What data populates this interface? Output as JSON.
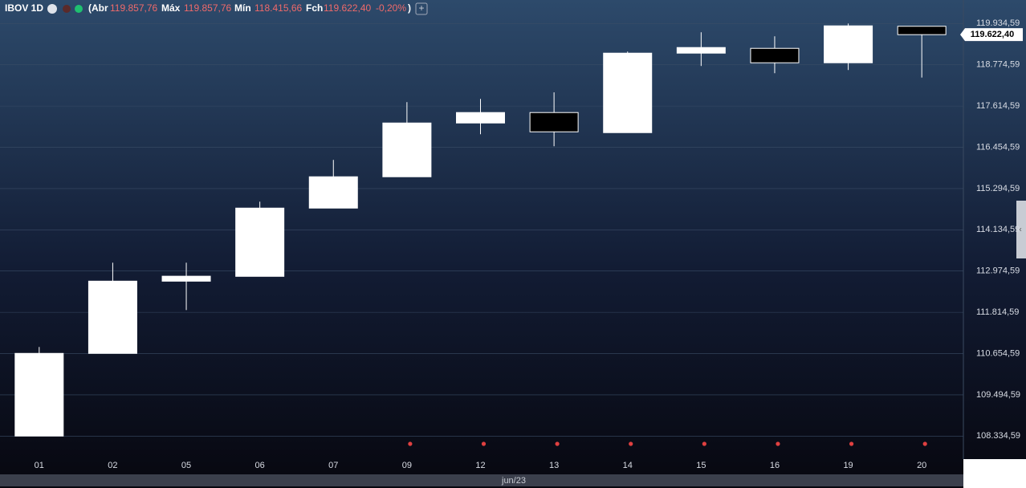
{
  "chart_data": {
    "type": "candlestick",
    "header": {
      "symbol": "IBOV 1D",
      "open_label": "(Abr",
      "open": "119.857,76",
      "high_label": "Máx",
      "high": "119.857,76",
      "low_label": "Mín",
      "low": "118.415,66",
      "close_label": "Fch",
      "close": "119.622,40",
      "change": "-0,20%",
      "end": ")"
    },
    "categories": [
      "01",
      "02",
      "05",
      "06",
      "07",
      "09",
      "12",
      "13",
      "14",
      "15",
      "16",
      "19",
      "20"
    ],
    "period_label": "jun/23",
    "open": [
      108335,
      110660,
      112690,
      112826,
      114745,
      115626,
      117138,
      117432,
      116867,
      119102,
      119237,
      118831,
      119857.76
    ],
    "high": [
      110840,
      113210,
      113210,
      114926,
      116100,
      117725,
      117815,
      118000,
      119147,
      119689,
      119576,
      119935,
      119857.76
    ],
    "low": [
      108335,
      110660,
      111878,
      112826,
      114745,
      115626,
      116822,
      116484,
      116867,
      118741,
      118538,
      118628,
      118415.66
    ],
    "close": [
      110660,
      112691,
      112830,
      114745,
      115626,
      117138,
      117432,
      116890,
      119102,
      119260,
      118831,
      119870,
      119622.4
    ],
    "up_color": "#ffffff",
    "down_color": "#000000",
    "event_markers": [
      false,
      false,
      false,
      false,
      false,
      true,
      true,
      true,
      true,
      true,
      true,
      true,
      true
    ],
    "marker_color": "#e04040",
    "last_price": {
      "value": 119622.4,
      "label": "119.622,40"
    },
    "ylim": [
      107800,
      120100
    ],
    "yticks": [
      {
        "value": 108334.59,
        "label": "108.334,59"
      },
      {
        "value": 109494.59,
        "label": "109.494,59"
      },
      {
        "value": 110654.59,
        "label": "110.654,59"
      },
      {
        "value": 111814.59,
        "label": "111.814,59"
      },
      {
        "value": 112974.59,
        "label": "112.974,59"
      },
      {
        "value": 114134.59,
        "label": "114.134,59"
      },
      {
        "value": 115294.59,
        "label": "115.294,59"
      },
      {
        "value": 116454.59,
        "label": "116.454,59"
      },
      {
        "value": 117614.59,
        "label": "117.614,59"
      },
      {
        "value": 118774.59,
        "label": "118.774,59"
      },
      {
        "value": 119934.59,
        "label": "119.934,59"
      }
    ],
    "grid": true
  }
}
